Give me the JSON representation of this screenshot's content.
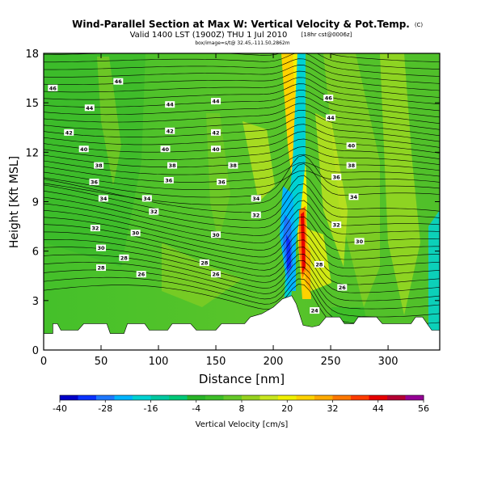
{
  "header": {
    "title": "Wind-Parallel Section at Max W: Vertical Velocity & Pot.Temp.",
    "copyright": "(C)",
    "valid_line": "Valid 1400 LST (1900Z) THU 1 Jul 2010",
    "valid_suffix": "[18hr cst@0006z]",
    "subline": "box/image=s/t@ 32.45,-111.50,2862m"
  },
  "chart_data": {
    "type": "heatmap",
    "title": "Wind-Parallel Section at Max W: Vertical Velocity & Pot.Temp.",
    "xlabel": "Distance [nm]",
    "ylabel": "Height [Kft MSL]",
    "xlim": [
      0,
      345
    ],
    "ylim": [
      0,
      18
    ],
    "x_ticks": [
      0,
      50,
      100,
      150,
      200,
      250,
      300
    ],
    "y_ticks": [
      0,
      3,
      6,
      9,
      12,
      15,
      18
    ],
    "colorbar": {
      "label": "Vertical Velocity [cm/s]",
      "ticks": [
        -40,
        -28,
        -16,
        -4,
        8,
        20,
        32,
        44,
        56
      ],
      "colors": [
        "#0000c8",
        "#0a32ff",
        "#1e78ff",
        "#00b4ff",
        "#00d2d2",
        "#00c8a0",
        "#00c878",
        "#28b428",
        "#3cbe28",
        "#64c828",
        "#96d21e",
        "#c8e61e",
        "#f0f000",
        "#ffd200",
        "#ffaa00",
        "#ff7800",
        "#ff3c00",
        "#e60000",
        "#b40032",
        "#960096"
      ]
    },
    "terrain_kft": [
      [
        0,
        1.0
      ],
      [
        8,
        1.0
      ],
      [
        8,
        1.6
      ],
      [
        12,
        1.6
      ],
      [
        15,
        1.2
      ],
      [
        30,
        1.2
      ],
      [
        35,
        1.6
      ],
      [
        55,
        1.6
      ],
      [
        58,
        1.0
      ],
      [
        70,
        1.0
      ],
      [
        73,
        1.6
      ],
      [
        88,
        1.6
      ],
      [
        92,
        1.2
      ],
      [
        108,
        1.2
      ],
      [
        112,
        1.6
      ],
      [
        128,
        1.6
      ],
      [
        133,
        1.2
      ],
      [
        150,
        1.2
      ],
      [
        155,
        1.6
      ],
      [
        175,
        1.6
      ],
      [
        180,
        2.0
      ],
      [
        190,
        2.2
      ],
      [
        200,
        2.6
      ],
      [
        208,
        3.1
      ],
      [
        216,
        3.3
      ],
      [
        220,
        2.8
      ],
      [
        226,
        1.5
      ],
      [
        234,
        1.4
      ],
      [
        240,
        1.5
      ],
      [
        246,
        2.0
      ],
      [
        258,
        2.0
      ],
      [
        262,
        1.6
      ],
      [
        270,
        1.6
      ],
      [
        274,
        2.0
      ],
      [
        290,
        2.0
      ],
      [
        295,
        1.6
      ],
      [
        320,
        1.6
      ],
      [
        324,
        2.0
      ],
      [
        330,
        2.0
      ],
      [
        334,
        1.6
      ],
      [
        338,
        1.2
      ],
      [
        345,
        1.2
      ]
    ],
    "isentrope_labels": [
      {
        "x": 8,
        "y": 15.9,
        "text": "46"
      },
      {
        "x": 65,
        "y": 16.3,
        "text": "46"
      },
      {
        "x": 40,
        "y": 14.7,
        "text": "44"
      },
      {
        "x": 110,
        "y": 14.9,
        "text": "44"
      },
      {
        "x": 22,
        "y": 13.2,
        "text": "42"
      },
      {
        "x": 110,
        "y": 13.3,
        "text": "42"
      },
      {
        "x": 35,
        "y": 12.2,
        "text": "40"
      },
      {
        "x": 106,
        "y": 12.2,
        "text": "40"
      },
      {
        "x": 48,
        "y": 11.2,
        "text": "38"
      },
      {
        "x": 112,
        "y": 11.2,
        "text": "38"
      },
      {
        "x": 44,
        "y": 10.2,
        "text": "36"
      },
      {
        "x": 109,
        "y": 10.3,
        "text": "36"
      },
      {
        "x": 52,
        "y": 9.2,
        "text": "34"
      },
      {
        "x": 90,
        "y": 9.2,
        "text": "34"
      },
      {
        "x": 45,
        "y": 7.4,
        "text": "32"
      },
      {
        "x": 96,
        "y": 8.4,
        "text": "32"
      },
      {
        "x": 50,
        "y": 6.2,
        "text": "30"
      },
      {
        "x": 80,
        "y": 7.1,
        "text": "30"
      },
      {
        "x": 50,
        "y": 5.0,
        "text": "28"
      },
      {
        "x": 70,
        "y": 5.6,
        "text": "28"
      },
      {
        "x": 85,
        "y": 4.6,
        "text": "26"
      },
      {
        "x": 150,
        "y": 15.1,
        "text": "44"
      },
      {
        "x": 150,
        "y": 13.2,
        "text": "42"
      },
      {
        "x": 150,
        "y": 12.2,
        "text": "40"
      },
      {
        "x": 165,
        "y": 11.2,
        "text": "38"
      },
      {
        "x": 155,
        "y": 10.2,
        "text": "36"
      },
      {
        "x": 185,
        "y": 9.2,
        "text": "34"
      },
      {
        "x": 185,
        "y": 8.2,
        "text": "32"
      },
      {
        "x": 150,
        "y": 7.0,
        "text": "30"
      },
      {
        "x": 140,
        "y": 5.3,
        "text": "28"
      },
      {
        "x": 150,
        "y": 4.6,
        "text": "26"
      },
      {
        "x": 248,
        "y": 15.3,
        "text": "46"
      },
      {
        "x": 250,
        "y": 14.1,
        "text": "44"
      },
      {
        "x": 268,
        "y": 12.4,
        "text": "40"
      },
      {
        "x": 268,
        "y": 11.2,
        "text": "38"
      },
      {
        "x": 255,
        "y": 10.5,
        "text": "36"
      },
      {
        "x": 270,
        "y": 9.3,
        "text": "34"
      },
      {
        "x": 255,
        "y": 7.6,
        "text": "32"
      },
      {
        "x": 275,
        "y": 6.6,
        "text": "30"
      },
      {
        "x": 240,
        "y": 5.2,
        "text": "28"
      },
      {
        "x": 260,
        "y": 3.8,
        "text": "26"
      },
      {
        "x": 236,
        "y": 2.4,
        "text": "24"
      }
    ]
  }
}
